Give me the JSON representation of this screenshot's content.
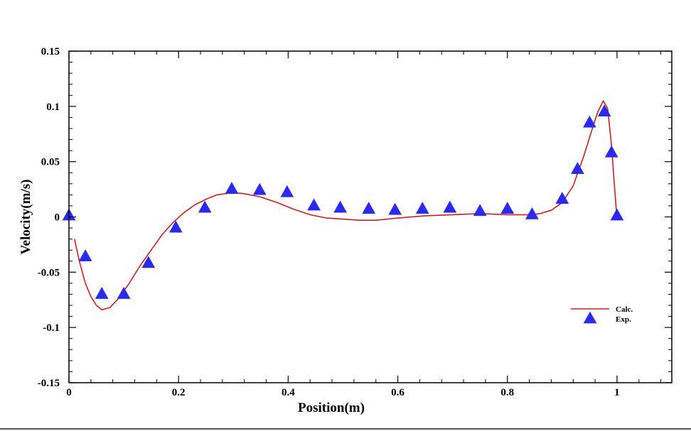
{
  "chart_data": {
    "type": "line",
    "title": "",
    "xlabel": "Position(m)",
    "ylabel": "Velocity(m/s)",
    "xlim": [
      0,
      1.1
    ],
    "ylim": [
      -0.15,
      0.15
    ],
    "x_ticks": [
      0,
      0.2,
      0.4,
      0.6,
      0.8,
      1
    ],
    "x_tick_labels": [
      "0",
      "0.2",
      "0.4",
      "0.6",
      "0.8",
      "1"
    ],
    "y_ticks": [
      -0.15,
      -0.1,
      -0.05,
      0,
      0.05,
      0.1,
      0.15
    ],
    "y_tick_labels": [
      "-0.15",
      "-0.1",
      "-0.05",
      "0",
      "0.05",
      "0.1",
      "0.15"
    ],
    "grid": false,
    "legend_position": "bottom-right",
    "series": [
      {
        "name": "Calc.",
        "kind": "line",
        "color": "#cc1f1f",
        "x": [
          0.01,
          0.02,
          0.03,
          0.04,
          0.05,
          0.06,
          0.075,
          0.09,
          0.11,
          0.13,
          0.15,
          0.17,
          0.19,
          0.21,
          0.23,
          0.25,
          0.27,
          0.3,
          0.32,
          0.35,
          0.38,
          0.41,
          0.44,
          0.47,
          0.5,
          0.53,
          0.56,
          0.6,
          0.65,
          0.7,
          0.75,
          0.8,
          0.84,
          0.86,
          0.88,
          0.9,
          0.92,
          0.94,
          0.955,
          0.965,
          0.975,
          0.983,
          0.99,
          0.995,
          1.0
        ],
        "y": [
          -0.02,
          -0.042,
          -0.06,
          -0.072,
          -0.08,
          -0.084,
          -0.082,
          -0.074,
          -0.06,
          -0.044,
          -0.03,
          -0.016,
          -0.005,
          0.004,
          0.011,
          0.016,
          0.02,
          0.022,
          0.021,
          0.018,
          0.013,
          0.007,
          0.002,
          -0.001,
          -0.002,
          -0.003,
          -0.003,
          -0.001,
          0.001,
          0.002,
          0.003,
          0.002,
          0.002,
          0.003,
          0.006,
          0.013,
          0.028,
          0.056,
          0.08,
          0.095,
          0.105,
          0.098,
          0.065,
          0.03,
          -0.002
        ]
      },
      {
        "name": "Exp.",
        "kind": "scatter",
        "marker": "triangle",
        "color": "#2b2bef",
        "x": [
          0.0,
          0.03,
          0.06,
          0.1,
          0.145,
          0.195,
          0.248,
          0.297,
          0.348,
          0.398,
          0.447,
          0.495,
          0.547,
          0.595,
          0.645,
          0.695,
          0.75,
          0.8,
          0.845,
          0.9,
          0.928,
          0.95,
          0.977,
          0.99,
          1.0
        ],
        "y": [
          0.001,
          -0.036,
          -0.07,
          -0.07,
          -0.042,
          -0.01,
          0.008,
          0.025,
          0.024,
          0.022,
          0.01,
          0.008,
          0.007,
          0.006,
          0.007,
          0.008,
          0.005,
          0.007,
          0.002,
          0.016,
          0.043,
          0.085,
          0.095,
          0.058,
          0.001
        ]
      }
    ]
  }
}
